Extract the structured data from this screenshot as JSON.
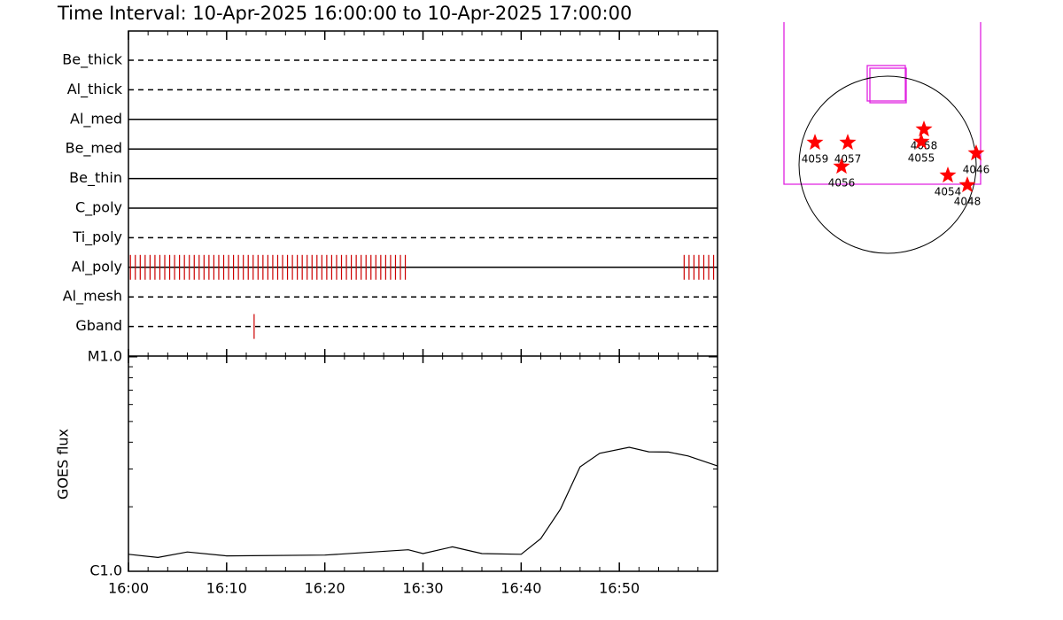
{
  "chart_data": [
    {
      "type": "event",
      "title": "Time Interval: 10-Apr-2025 16:00:00 to 10-Apr-2025 17:00:00",
      "categories": [
        "Be_thick",
        "Al_thick",
        "Al_med",
        "Be_med",
        "Be_thin",
        "C_poly",
        "Ti_poly",
        "Al_poly",
        "Al_mesh",
        "Gband"
      ],
      "styles": [
        "dashed",
        "dashed",
        "solid",
        "solid",
        "solid",
        "solid",
        "dashed",
        "solid",
        "dashed",
        "dashed"
      ],
      "events": [
        [],
        [],
        [],
        [],
        [],
        [],
        [],
        [
          0.2,
          0.7,
          1.2,
          1.7,
          2.2,
          2.7,
          3.2,
          3.7,
          4.2,
          4.7,
          5.2,
          5.7,
          6.2,
          6.7,
          7.2,
          7.7,
          8.2,
          8.7,
          9.2,
          9.7,
          10.2,
          10.7,
          11.2,
          11.7,
          12.2,
          12.7,
          13.2,
          13.7,
          14.2,
          14.7,
          15.2,
          15.7,
          16.2,
          16.7,
          17.2,
          17.7,
          18.2,
          18.7,
          19.2,
          19.7,
          20.2,
          20.7,
          21.2,
          21.7,
          22.2,
          22.7,
          23.2,
          23.7,
          24.2,
          24.7,
          25.2,
          25.7,
          26.2,
          26.7,
          27.2,
          27.7,
          28.2,
          56.6,
          57.1,
          57.6,
          58.1,
          58.6,
          59.1,
          59.6
        ],
        [],
        [
          12.8
        ]
      ],
      "color": "#cc0000",
      "xlim": [
        0,
        60
      ]
    },
    {
      "type": "line",
      "ylabel": "GOES flux",
      "log": true,
      "x": [
        0,
        3,
        6,
        10,
        20,
        28.5,
        30,
        33,
        36,
        40,
        42,
        44,
        46,
        48,
        51,
        53,
        55,
        57,
        60
      ],
      "values": [
        1.2e-06,
        1.16e-06,
        1.23e-06,
        1.18e-06,
        1.19e-06,
        1.26e-06,
        1.21e-06,
        1.3e-06,
        1.21e-06,
        1.2e-06,
        1.42e-06,
        1.95e-06,
        3.07e-06,
        3.55e-06,
        3.79e-06,
        3.61e-06,
        3.6e-06,
        3.45e-06,
        3.1e-06
      ],
      "color": "#000000",
      "xlim": [
        0,
        60
      ],
      "xticks": [
        {
          "value": 0,
          "label": "16:00"
        },
        {
          "value": 10,
          "label": "16:10"
        },
        {
          "value": 20,
          "label": "16:20"
        },
        {
          "value": 30,
          "label": "16:30"
        },
        {
          "value": 40,
          "label": "16:40"
        },
        {
          "value": 50,
          "label": "16:50"
        }
      ],
      "ylim": [
        1e-06,
        1e-05
      ],
      "yticks": [
        {
          "value": 1e-06,
          "label": "C1.0"
        },
        {
          "value": 1e-05,
          "label": "M1.0"
        }
      ]
    },
    {
      "type": "map",
      "color": "#ff0000",
      "regions": [
        {
          "name": "4059",
          "x": -787,
          "y": 240
        },
        {
          "name": "4057",
          "x": -432,
          "y": 240
        },
        {
          "name": "4056",
          "x": -499,
          "y": -19
        },
        {
          "name": "4058",
          "x": 394,
          "y": 384
        },
        {
          "name": "4055",
          "x": 365,
          "y": 250
        },
        {
          "name": "4046",
          "x": 960,
          "y": 125
        },
        {
          "name": "4054",
          "x": 653,
          "y": -115
        },
        {
          "name": "4048",
          "x": 864,
          "y": -221
        }
      ]
    }
  ]
}
